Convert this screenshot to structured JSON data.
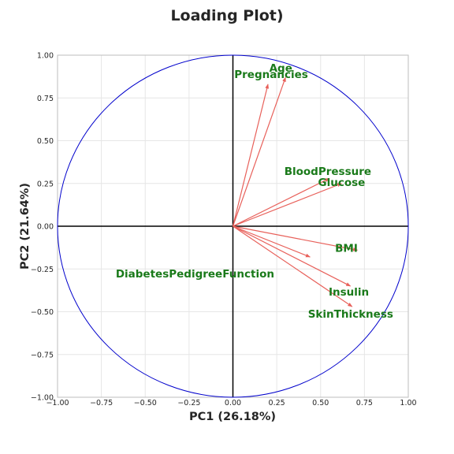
{
  "chart_data": {
    "type": "scatter",
    "title": "Loading Plot)",
    "xlabel": "PC1 (26.18%)",
    "ylabel": "PC2 (21.64%)",
    "xlim": [
      -1.0,
      1.0
    ],
    "ylim": [
      -1.0,
      1.0
    ],
    "x_ticks": [
      "−1.00",
      "−0.75",
      "−0.50",
      "−0.25",
      "0.00",
      "0.25",
      "0.50",
      "0.75",
      "1.00"
    ],
    "y_ticks": [
      "1.00",
      "0.75",
      "0.50",
      "0.25",
      "0.00",
      "−0.25",
      "−0.50",
      "−0.75",
      "−1.00"
    ],
    "grid": true,
    "unit_circle": true,
    "colors": {
      "circle": "#0000cc",
      "arrow": "#e8605a",
      "label": "#1a7a1a",
      "axis_line": "#000000",
      "grid": "#e6e6e6",
      "frame": "#bdbdbd"
    },
    "loadings": [
      {
        "name": "Pregnancies",
        "x": 0.2,
        "y": 0.83
      },
      {
        "name": "Glucose",
        "x": 0.62,
        "y": 0.25
      },
      {
        "name": "BloodPressure",
        "x": 0.55,
        "y": 0.28
      },
      {
        "name": "SkinThickness",
        "x": 0.68,
        "y": -0.47
      },
      {
        "name": "Insulin",
        "x": 0.67,
        "y": -0.35
      },
      {
        "name": "BMI",
        "x": 0.71,
        "y": -0.14
      },
      {
        "name": "DiabetesPedigreeFunction",
        "x": 0.44,
        "y": -0.18
      },
      {
        "name": "Age",
        "x": 0.3,
        "y": 0.87
      }
    ]
  }
}
